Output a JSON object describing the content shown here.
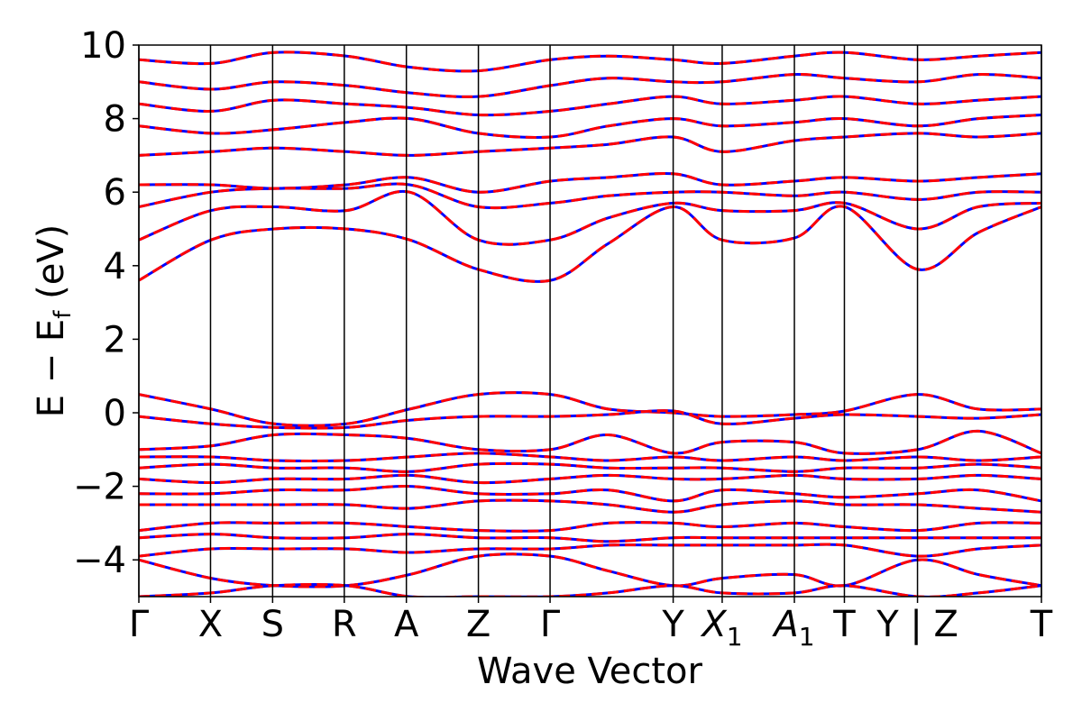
{
  "chart_data": {
    "type": "line",
    "title": "",
    "xlabel": "Wave Vector",
    "ylabel": "E − E",
    "ylabel_sub": "f",
    "ylabel_unit": " (eV)",
    "ylim": [
      -5,
      10
    ],
    "yticks": [
      -4,
      -2,
      0,
      2,
      4,
      6,
      8,
      10
    ],
    "ytick_labels": [
      "−4",
      "−2",
      "0",
      "2",
      "4",
      "6",
      "8",
      "10"
    ],
    "grid": false,
    "legend": "none",
    "kpath_positions": [
      0,
      0.0794,
      0.1482,
      0.2276,
      0.2964,
      0.3762,
      0.4556,
      0.592,
      0.6463,
      0.7263,
      0.7817,
      0.8627,
      1.0
    ],
    "kpath_labels": [
      {
        "main": "Γ",
        "sub": ""
      },
      {
        "main": "X",
        "sub": ""
      },
      {
        "main": "S",
        "sub": ""
      },
      {
        "main": "R",
        "sub": ""
      },
      {
        "main": "A",
        "sub": ""
      },
      {
        "main": "Z",
        "sub": ""
      },
      {
        "main": "Γ",
        "sub": ""
      },
      {
        "main": "Y",
        "sub": ""
      },
      {
        "main": "X",
        "sub": "1"
      },
      {
        "main": "A",
        "sub": "1"
      },
      {
        "main": "T",
        "sub": ""
      },
      {
        "main": "Y | Z",
        "sub": ""
      },
      {
        "main": "T",
        "sub": ""
      }
    ],
    "series": [
      {
        "style": "solid",
        "color": "#0000ff",
        "width": 3
      },
      {
        "style": "dashed",
        "color": "#ff0000",
        "width": 3
      }
    ],
    "bands": [
      {
        "label": "cb1",
        "x": [
          0,
          0.08,
          0.15,
          0.23,
          0.3,
          0.376,
          0.456,
          0.52,
          0.592,
          0.646,
          0.726,
          0.782,
          0.863,
          0.93,
          1.0
        ],
        "y": [
          3.6,
          4.7,
          5.0,
          5.0,
          4.7,
          3.9,
          3.6,
          4.6,
          5.6,
          4.7,
          4.75,
          5.6,
          3.9,
          4.9,
          5.6
        ]
      },
      {
        "label": "cb2",
        "x": [
          0,
          0.08,
          0.15,
          0.23,
          0.3,
          0.376,
          0.456,
          0.52,
          0.592,
          0.646,
          0.726,
          0.782,
          0.863,
          0.93,
          1.0
        ],
        "y": [
          4.7,
          5.5,
          5.6,
          5.5,
          6.0,
          4.7,
          4.7,
          5.3,
          5.7,
          5.5,
          5.5,
          5.7,
          5.0,
          5.6,
          5.7
        ]
      },
      {
        "label": "cb3",
        "x": [
          0,
          0.08,
          0.15,
          0.23,
          0.3,
          0.376,
          0.456,
          0.52,
          0.592,
          0.646,
          0.726,
          0.782,
          0.863,
          0.93,
          1.0
        ],
        "y": [
          5.6,
          6.0,
          6.1,
          6.1,
          6.2,
          5.6,
          5.7,
          5.9,
          6.0,
          6.0,
          5.9,
          6.0,
          5.8,
          6.0,
          6.0
        ]
      },
      {
        "label": "cb4",
        "x": [
          0,
          0.08,
          0.15,
          0.23,
          0.3,
          0.376,
          0.456,
          0.52,
          0.592,
          0.646,
          0.726,
          0.782,
          0.863,
          0.93,
          1.0
        ],
        "y": [
          6.2,
          6.2,
          6.1,
          6.2,
          6.4,
          6.0,
          6.3,
          6.4,
          6.5,
          6.2,
          6.3,
          6.4,
          6.3,
          6.4,
          6.5
        ]
      },
      {
        "label": "cb5",
        "x": [
          0,
          0.08,
          0.15,
          0.23,
          0.3,
          0.376,
          0.456,
          0.52,
          0.592,
          0.646,
          0.726,
          0.782,
          0.863,
          0.93,
          1.0
        ],
        "y": [
          7.0,
          7.1,
          7.2,
          7.1,
          7.0,
          7.1,
          7.2,
          7.3,
          7.5,
          7.1,
          7.4,
          7.5,
          7.6,
          7.5,
          7.6
        ]
      },
      {
        "label": "cb6",
        "x": [
          0,
          0.08,
          0.15,
          0.23,
          0.3,
          0.376,
          0.456,
          0.52,
          0.592,
          0.646,
          0.726,
          0.782,
          0.863,
          0.93,
          1.0
        ],
        "y": [
          7.8,
          7.6,
          7.7,
          7.9,
          8.0,
          7.6,
          7.5,
          7.8,
          8.0,
          7.8,
          7.9,
          8.0,
          7.8,
          8.0,
          8.1
        ]
      },
      {
        "label": "cb7",
        "x": [
          0,
          0.08,
          0.15,
          0.23,
          0.3,
          0.376,
          0.456,
          0.52,
          0.592,
          0.646,
          0.726,
          0.782,
          0.863,
          0.93,
          1.0
        ],
        "y": [
          8.4,
          8.2,
          8.5,
          8.4,
          8.3,
          8.1,
          8.2,
          8.4,
          8.6,
          8.4,
          8.5,
          8.6,
          8.4,
          8.5,
          8.6
        ]
      },
      {
        "label": "cb8",
        "x": [
          0,
          0.08,
          0.15,
          0.23,
          0.3,
          0.376,
          0.456,
          0.52,
          0.592,
          0.646,
          0.726,
          0.782,
          0.863,
          0.93,
          1.0
        ],
        "y": [
          9.0,
          8.8,
          9.0,
          8.9,
          8.7,
          8.6,
          8.9,
          9.1,
          9.0,
          9.0,
          9.2,
          9.1,
          9.0,
          9.2,
          9.1
        ]
      },
      {
        "label": "cb9",
        "x": [
          0,
          0.08,
          0.15,
          0.23,
          0.3,
          0.376,
          0.456,
          0.52,
          0.592,
          0.646,
          0.726,
          0.782,
          0.863,
          0.93,
          1.0
        ],
        "y": [
          9.6,
          9.5,
          9.8,
          9.7,
          9.4,
          9.3,
          9.6,
          9.7,
          9.6,
          9.5,
          9.7,
          9.8,
          9.6,
          9.7,
          9.8
        ]
      },
      {
        "label": "vb1",
        "x": [
          0,
          0.08,
          0.15,
          0.23,
          0.3,
          0.376,
          0.456,
          0.52,
          0.592,
          0.646,
          0.726,
          0.782,
          0.863,
          0.93,
          1.0
        ],
        "y": [
          0.5,
          0.1,
          -0.3,
          -0.3,
          0.1,
          0.5,
          0.5,
          0.1,
          0.0,
          -0.1,
          -0.05,
          0.05,
          0.5,
          0.1,
          0.1
        ]
      },
      {
        "label": "vb2",
        "x": [
          0,
          0.08,
          0.15,
          0.23,
          0.3,
          0.376,
          0.456,
          0.52,
          0.592,
          0.646,
          0.726,
          0.782,
          0.863,
          0.93,
          1.0
        ],
        "y": [
          -0.1,
          -0.3,
          -0.4,
          -0.4,
          -0.2,
          -0.1,
          -0.1,
          -0.05,
          0.05,
          -0.3,
          -0.15,
          -0.05,
          -0.1,
          -0.15,
          -0.05
        ]
      },
      {
        "label": "vb3",
        "x": [
          0,
          0.08,
          0.15,
          0.23,
          0.3,
          0.376,
          0.456,
          0.52,
          0.592,
          0.646,
          0.726,
          0.782,
          0.863,
          0.93,
          1.0
        ],
        "y": [
          -1.0,
          -0.9,
          -0.6,
          -0.6,
          -0.7,
          -1.0,
          -1.0,
          -0.6,
          -1.1,
          -0.8,
          -0.8,
          -1.1,
          -1.0,
          -0.5,
          -1.1
        ]
      },
      {
        "label": "vb4",
        "x": [
          0,
          0.08,
          0.15,
          0.23,
          0.3,
          0.376,
          0.456,
          0.52,
          0.592,
          0.646,
          0.726,
          0.782,
          0.863,
          0.93,
          1.0
        ],
        "y": [
          -1.2,
          -1.2,
          -1.3,
          -1.3,
          -1.2,
          -1.1,
          -1.2,
          -1.3,
          -1.2,
          -1.3,
          -1.2,
          -1.3,
          -1.2,
          -1.3,
          -1.2
        ]
      },
      {
        "label": "vb5",
        "x": [
          0,
          0.08,
          0.15,
          0.23,
          0.3,
          0.376,
          0.456,
          0.52,
          0.592,
          0.646,
          0.726,
          0.782,
          0.863,
          0.93,
          1.0
        ],
        "y": [
          -1.5,
          -1.4,
          -1.5,
          -1.5,
          -1.6,
          -1.4,
          -1.4,
          -1.5,
          -1.5,
          -1.5,
          -1.6,
          -1.5,
          -1.5,
          -1.4,
          -1.5
        ]
      },
      {
        "label": "vb6",
        "x": [
          0,
          0.08,
          0.15,
          0.23,
          0.3,
          0.376,
          0.456,
          0.52,
          0.592,
          0.646,
          0.726,
          0.782,
          0.863,
          0.93,
          1.0
        ],
        "y": [
          -1.8,
          -1.9,
          -1.8,
          -1.8,
          -1.7,
          -1.9,
          -1.8,
          -1.7,
          -1.8,
          -1.8,
          -1.7,
          -1.8,
          -1.8,
          -1.7,
          -1.8
        ]
      },
      {
        "label": "vb7",
        "x": [
          0,
          0.08,
          0.15,
          0.23,
          0.3,
          0.376,
          0.456,
          0.52,
          0.592,
          0.646,
          0.726,
          0.782,
          0.863,
          0.93,
          1.0
        ],
        "y": [
          -2.2,
          -2.2,
          -2.1,
          -2.1,
          -2.0,
          -2.2,
          -2.2,
          -2.1,
          -2.4,
          -2.1,
          -2.2,
          -2.3,
          -2.2,
          -2.1,
          -2.4
        ]
      },
      {
        "label": "vb8",
        "x": [
          0,
          0.08,
          0.15,
          0.23,
          0.3,
          0.376,
          0.456,
          0.52,
          0.592,
          0.646,
          0.726,
          0.782,
          0.863,
          0.93,
          1.0
        ],
        "y": [
          -2.5,
          -2.5,
          -2.5,
          -2.5,
          -2.6,
          -2.4,
          -2.4,
          -2.5,
          -2.7,
          -2.5,
          -2.4,
          -2.5,
          -2.5,
          -2.6,
          -2.7
        ]
      },
      {
        "label": "vb9",
        "x": [
          0,
          0.08,
          0.15,
          0.23,
          0.3,
          0.376,
          0.456,
          0.52,
          0.592,
          0.646,
          0.726,
          0.782,
          0.863,
          0.93,
          1.0
        ],
        "y": [
          -3.2,
          -3.0,
          -3.0,
          -3.0,
          -3.1,
          -3.2,
          -3.2,
          -3.0,
          -3.0,
          -3.1,
          -3.0,
          -3.1,
          -3.2,
          -3.0,
          -3.0
        ]
      },
      {
        "label": "vb10",
        "x": [
          0,
          0.08,
          0.15,
          0.23,
          0.3,
          0.376,
          0.456,
          0.52,
          0.592,
          0.646,
          0.726,
          0.782,
          0.863,
          0.93,
          1.0
        ],
        "y": [
          -3.4,
          -3.3,
          -3.4,
          -3.4,
          -3.3,
          -3.4,
          -3.4,
          -3.5,
          -3.4,
          -3.4,
          -3.4,
          -3.4,
          -3.4,
          -3.4,
          -3.4
        ]
      },
      {
        "label": "vb11",
        "x": [
          0,
          0.08,
          0.15,
          0.23,
          0.3,
          0.376,
          0.456,
          0.52,
          0.592,
          0.646,
          0.726,
          0.782,
          0.863,
          0.93,
          1.0
        ],
        "y": [
          -3.9,
          -3.7,
          -3.7,
          -3.7,
          -3.8,
          -3.7,
          -3.7,
          -3.6,
          -3.6,
          -3.6,
          -3.6,
          -3.6,
          -3.9,
          -3.7,
          -3.6
        ]
      },
      {
        "label": "vb12",
        "x": [
          0,
          0.08,
          0.15,
          0.23,
          0.3,
          0.376,
          0.456,
          0.52,
          0.592,
          0.646,
          0.726,
          0.782,
          0.863,
          0.93,
          1.0
        ],
        "y": [
          -4.0,
          -4.5,
          -4.7,
          -4.7,
          -4.4,
          -3.9,
          -3.9,
          -4.3,
          -4.7,
          -4.5,
          -4.4,
          -4.7,
          -4.0,
          -4.4,
          -4.7
        ]
      },
      {
        "label": "vb13",
        "x": [
          0,
          0.08,
          0.15,
          0.23,
          0.3,
          0.376,
          0.456,
          0.52,
          0.592,
          0.646,
          0.726,
          0.782,
          0.863,
          0.93,
          1.0
        ],
        "y": [
          -5.0,
          -4.9,
          -4.7,
          -4.7,
          -5.0,
          -5.0,
          -5.0,
          -4.9,
          -4.7,
          -4.9,
          -4.9,
          -4.7,
          -5.0,
          -4.9,
          -4.7
        ]
      }
    ]
  }
}
